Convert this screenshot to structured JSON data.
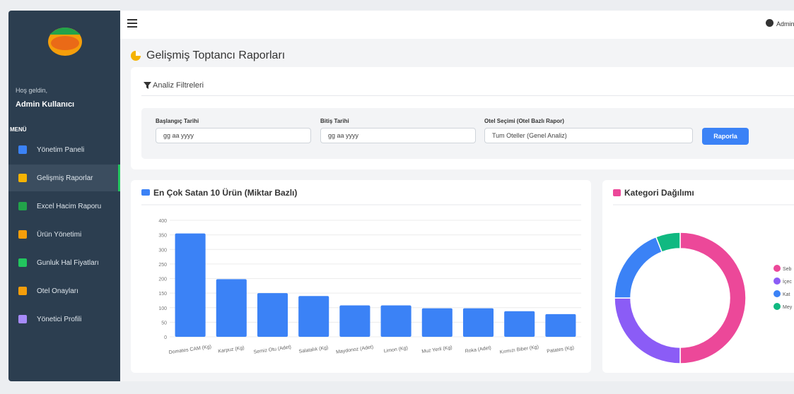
{
  "sidebar": {
    "welcome": "Hoş geldin,",
    "user": "Admin Kullanıcı",
    "menu_title": "MENÜ",
    "items": [
      "Yönetim Paneli",
      "Gelişmiş Raporlar",
      "Excel Hacim Raporu",
      "Ürün Yönetimi",
      "Gunluk Hal Fiyatları",
      "Otel Onayları",
      "Yönetici Profili"
    ]
  },
  "topbar": {
    "user": "Admin"
  },
  "page_title": "Gelişmiş Toptancı Raporları",
  "filters": {
    "title": "Analiz Filtreleri",
    "start_label": "Başlangıç Tarihi",
    "start_placeholder": "gg aa yyyy",
    "end_label": "Bitiş Tarihi",
    "end_placeholder": "gg aa yyyy",
    "hotel_label": "Otel Seçimi (Otel Bazlı Rapor)",
    "hotel_option": "Tum Oteller (Genel Analiz)",
    "button": "Raporla"
  },
  "chart_data": [
    {
      "type": "bar",
      "title": "En Çok Satan 10 Ürün (Miktar Bazlı)",
      "categories": [
        "Domates CAM (Kg)",
        "Karpuz (Kg)",
        "Semiz Otu (Adet)",
        "Salatalık (Kg)",
        "Maydonoz (Adet)",
        "Limon (Kg)",
        "Muz Yerli (Kg)",
        "Roka (Adet)",
        "Kırmızı Biber (Kg)",
        "Patates (Kg)"
      ],
      "values": [
        355,
        198,
        150,
        140,
        108,
        108,
        98,
        98,
        88,
        78
      ],
      "color": "#3b82f6",
      "ylim": [
        0,
        400
      ],
      "yticks": [
        0,
        50,
        100,
        150,
        200,
        250,
        300,
        350,
        400
      ],
      "grid": true
    },
    {
      "type": "doughnut",
      "title": "Kategori Dağılımı",
      "categories": [
        "Seb",
        "İçec",
        "Kat",
        "Mey"
      ],
      "values": [
        50,
        25,
        19,
        6
      ],
      "colors": [
        "#ec4899",
        "#8b5cf6",
        "#3b82f6",
        "#10b981"
      ],
      "legend": "right"
    }
  ]
}
